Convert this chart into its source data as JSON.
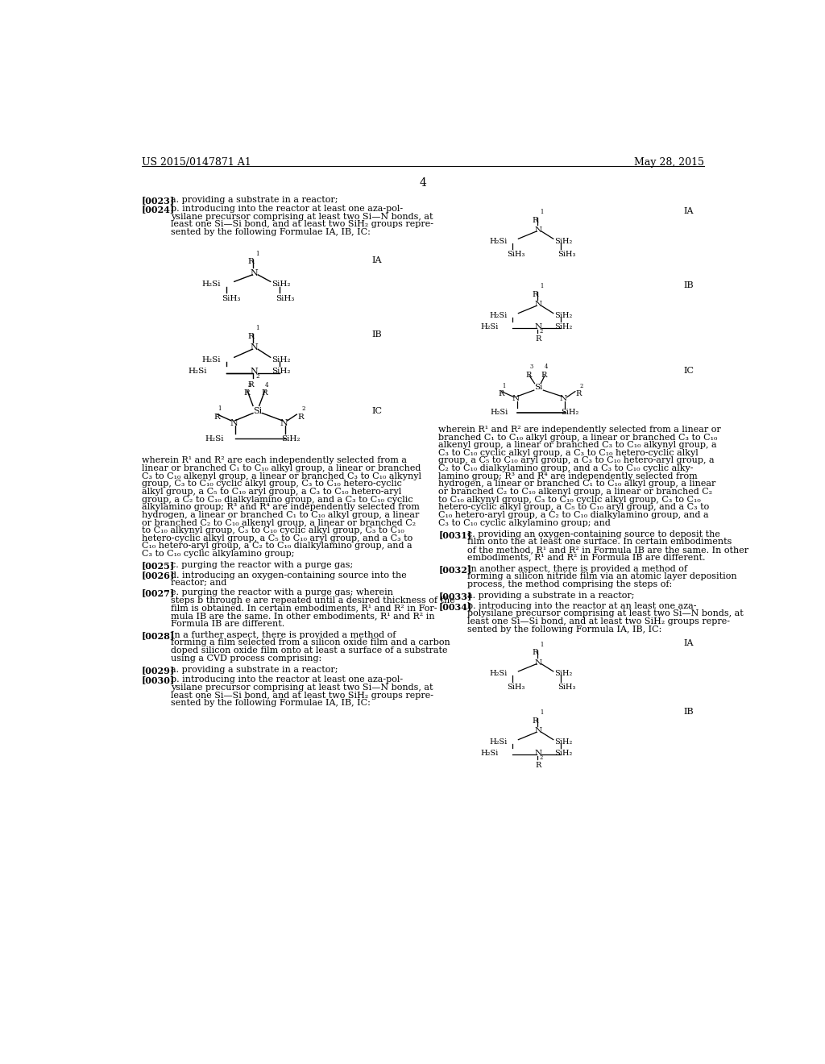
{
  "background_color": "#ffffff",
  "header_left": "US 2015/0147871 A1",
  "header_right": "May 28, 2015",
  "page_number": "4"
}
